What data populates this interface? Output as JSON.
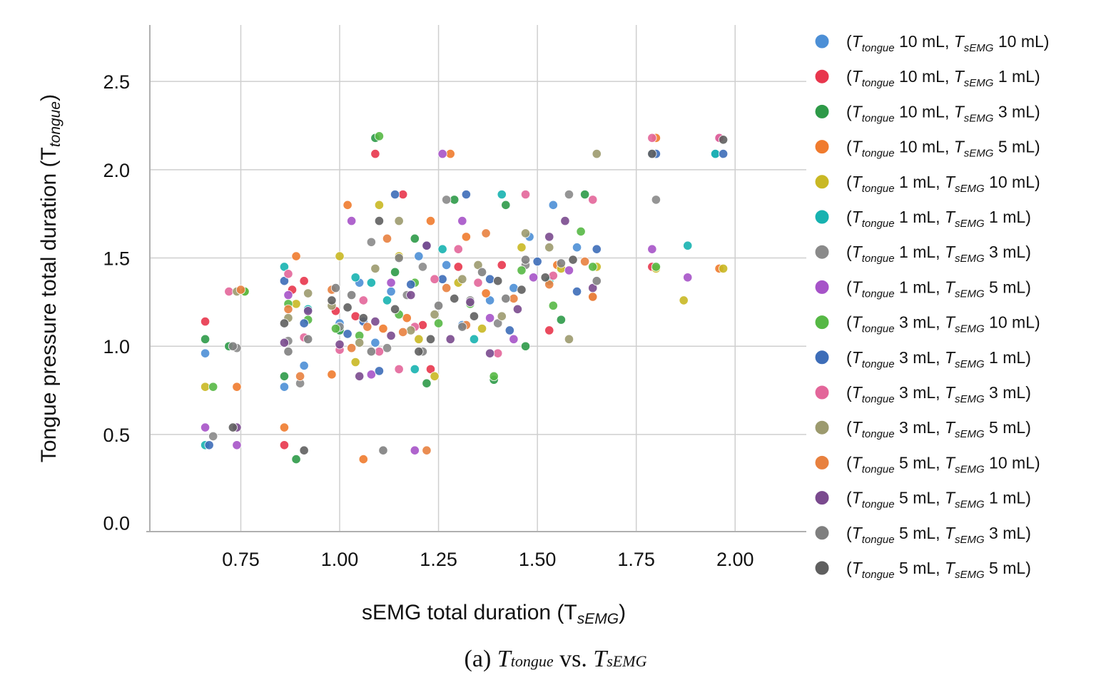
{
  "chart_data": {
    "type": "scatter",
    "xlabel_main": "sEMG total duration (T",
    "xlabel_sub": "sEMG",
    "xlabel_close": ")",
    "ylabel_main": "Tongue pressure total duration (T",
    "ylabel_sub": "tongue",
    "ylabel_close": ")",
    "xlim": [
      0.52,
      2.18
    ],
    "ylim": [
      -0.05,
      2.82
    ],
    "x_ticks": [
      0.75,
      1.0,
      1.25,
      1.5,
      1.75,
      2.0
    ],
    "x_tick_labels": [
      "0.75",
      "1.00",
      "1.25",
      "1.50",
      "1.75",
      "2.00"
    ],
    "y_ticks": [
      0.0,
      0.5,
      1.0,
      1.5,
      2.0,
      2.5
    ],
    "y_tick_labels": [
      "0.0",
      "0.5",
      "1.0",
      "1.5",
      "2.0",
      "2.5"
    ],
    "grid": true,
    "legend_position": "right",
    "series": [
      {
        "name": "(T_tongue 10 mL, T_sEMG 10 mL)",
        "t": "10",
        "s": "10",
        "color": "#4c8fd6",
        "x": [
          0.66,
          0.86,
          0.91,
          1.0,
          1.05,
          1.09,
          1.13,
          1.2,
          1.27,
          1.31,
          1.38,
          1.44,
          1.48,
          1.54,
          1.6,
          1.79,
          1.95
        ],
        "y": [
          0.96,
          0.77,
          0.89,
          1.13,
          1.36,
          1.02,
          1.31,
          1.51,
          1.46,
          1.12,
          1.26,
          1.33,
          1.62,
          1.8,
          1.56,
          2.09,
          2.09
        ]
      },
      {
        "name": "(T_tongue 10 mL, T_sEMG 1 mL)",
        "t": "10",
        "s": "1",
        "color": "#e8364d",
        "x": [
          0.66,
          0.86,
          0.88,
          0.91,
          0.99,
          1.04,
          1.09,
          1.16,
          1.21,
          1.23,
          1.3,
          1.41,
          1.53,
          1.79
        ],
        "y": [
          1.14,
          0.44,
          1.32,
          1.37,
          1.2,
          1.17,
          2.09,
          1.86,
          1.12,
          0.87,
          1.45,
          1.46,
          1.09,
          1.45
        ]
      },
      {
        "name": "(T_tongue 10 mL, T_sEMG 3 mL)",
        "t": "10",
        "s": "3",
        "color": "#2e9a48",
        "x": [
          0.66,
          0.72,
          0.86,
          0.89,
          1.0,
          1.09,
          1.14,
          1.19,
          1.22,
          1.29,
          1.39,
          1.42,
          1.47,
          1.56,
          1.62
        ],
        "y": [
          1.04,
          1.0,
          0.83,
          0.36,
          1.09,
          2.18,
          1.42,
          1.61,
          0.79,
          1.83,
          0.81,
          1.8,
          1.0,
          1.15,
          1.86
        ]
      },
      {
        "name": "(T_tongue 10 mL, T_sEMG 5 mL)",
        "t": "10",
        "s": "5",
        "color": "#f07b2e",
        "x": [
          0.74,
          0.86,
          0.89,
          0.98,
          1.02,
          1.06,
          1.11,
          1.17,
          1.23,
          1.28,
          1.32,
          1.37,
          1.55,
          1.64,
          1.8,
          1.96
        ],
        "y": [
          0.77,
          0.54,
          1.51,
          0.84,
          1.8,
          0.36,
          1.1,
          1.16,
          1.71,
          2.09,
          1.62,
          1.3,
          1.46,
          1.28,
          2.18,
          1.44
        ]
      },
      {
        "name": "(T_tongue 1 mL, T_sEMG 10 mL)",
        "t": "1",
        "s": "10",
        "color": "#c9b824",
        "x": [
          0.66,
          0.76,
          0.89,
          1.0,
          1.04,
          1.1,
          1.15,
          1.2,
          1.24,
          1.3,
          1.36,
          1.46,
          1.56,
          1.65,
          1.8,
          1.87,
          1.97
        ],
        "y": [
          0.77,
          1.31,
          1.24,
          1.51,
          0.91,
          1.8,
          1.51,
          1.04,
          0.83,
          1.36,
          1.1,
          1.56,
          1.44,
          1.45,
          1.44,
          1.26,
          1.44
        ]
      },
      {
        "name": "(T_tongue 1 mL, T_sEMG 1 mL)",
        "t": "1",
        "s": "1",
        "color": "#17b2b0",
        "x": [
          0.66,
          0.86,
          0.92,
          1.04,
          1.08,
          1.12,
          1.19,
          1.26,
          1.34,
          1.41,
          1.53,
          1.88,
          1.95
        ],
        "y": [
          0.44,
          1.45,
          1.21,
          1.39,
          1.36,
          1.26,
          0.87,
          1.55,
          1.04,
          1.86,
          1.37,
          1.57,
          2.09
        ]
      },
      {
        "name": "(T_tongue 1 mL, T_sEMG 3 mL)",
        "t": "1",
        "s": "3",
        "color": "#8a8a8a",
        "x": [
          0.68,
          0.74,
          0.87,
          0.9,
          1.0,
          1.08,
          1.12,
          1.17,
          1.21,
          1.27,
          1.33,
          1.4,
          1.47,
          1.58,
          1.8
        ],
        "y": [
          0.49,
          0.99,
          1.03,
          0.79,
          1.11,
          1.59,
          0.99,
          1.29,
          1.45,
          1.83,
          1.26,
          1.13,
          1.46,
          1.86,
          1.83
        ]
      },
      {
        "name": "(T_tongue 1 mL, T_sEMG 5 mL)",
        "t": "1",
        "s": "5",
        "color": "#a653c8",
        "x": [
          0.66,
          0.74,
          0.87,
          1.03,
          1.08,
          1.13,
          1.19,
          1.26,
          1.31,
          1.38,
          1.44,
          1.49,
          1.58,
          1.79,
          1.88,
          1.96
        ],
        "y": [
          0.54,
          0.44,
          1.29,
          1.71,
          0.84,
          1.36,
          0.41,
          2.09,
          1.71,
          1.16,
          1.04,
          1.39,
          1.43,
          1.55,
          1.39,
          2.18
        ]
      },
      {
        "name": "(T_tongue 3 mL, T_sEMG 10 mL)",
        "t": "3",
        "s": "10",
        "color": "#56b845",
        "x": [
          0.68,
          0.76,
          0.87,
          0.92,
          0.99,
          1.05,
          1.1,
          1.15,
          1.19,
          1.25,
          1.33,
          1.39,
          1.46,
          1.54,
          1.61,
          1.64,
          1.8
        ],
        "y": [
          0.77,
          1.31,
          1.24,
          1.15,
          1.1,
          1.06,
          2.19,
          1.18,
          1.36,
          1.13,
          1.24,
          0.83,
          1.43,
          1.23,
          1.65,
          1.45,
          1.45
        ]
      },
      {
        "name": "(T_tongue 3 mL, T_sEMG 1 mL)",
        "t": "3",
        "s": "1",
        "color": "#3d6db8",
        "x": [
          0.67,
          0.86,
          0.91,
          1.02,
          1.06,
          1.1,
          1.14,
          1.18,
          1.22,
          1.26,
          1.32,
          1.38,
          1.43,
          1.5,
          1.6,
          1.65,
          1.8,
          1.97
        ],
        "y": [
          0.44,
          1.37,
          1.13,
          1.07,
          1.14,
          0.86,
          1.86,
          1.35,
          1.57,
          1.38,
          1.86,
          1.38,
          1.09,
          1.48,
          1.31,
          1.55,
          2.09,
          2.09
        ]
      },
      {
        "name": "(T_tongue 3 mL, T_sEMG 3 mL)",
        "t": "3",
        "s": "3",
        "color": "#e3669a",
        "x": [
          0.72,
          0.87,
          0.91,
          1.0,
          1.06,
          1.1,
          1.15,
          1.19,
          1.24,
          1.3,
          1.35,
          1.4,
          1.47,
          1.54,
          1.64,
          1.79,
          1.96
        ],
        "y": [
          1.31,
          1.41,
          1.05,
          0.98,
          1.26,
          0.97,
          0.87,
          1.11,
          1.38,
          1.55,
          1.36,
          0.96,
          1.86,
          1.4,
          1.83,
          2.18,
          2.18
        ]
      },
      {
        "name": "(T_tongue 3 mL, T_sEMG 5 mL)",
        "t": "3",
        "s": "5",
        "color": "#9c9a6e",
        "x": [
          0.74,
          0.87,
          0.92,
          0.98,
          1.05,
          1.09,
          1.15,
          1.18,
          1.24,
          1.31,
          1.35,
          1.41,
          1.47,
          1.53,
          1.58,
          1.65
        ],
        "y": [
          1.31,
          1.16,
          1.3,
          1.23,
          1.02,
          1.44,
          1.71,
          1.09,
          1.18,
          1.38,
          1.46,
          1.17,
          1.64,
          1.56,
          1.04,
          2.09
        ]
      },
      {
        "name": "(T_tongue 5 mL, T_sEMG 10 mL)",
        "t": "5",
        "s": "10",
        "color": "#e8813f",
        "x": [
          0.75,
          0.87,
          0.9,
          0.98,
          1.03,
          1.07,
          1.12,
          1.16,
          1.22,
          1.27,
          1.32,
          1.37,
          1.44,
          1.53,
          1.62,
          1.64
        ],
        "y": [
          1.32,
          1.21,
          0.83,
          1.32,
          0.99,
          1.11,
          1.61,
          1.08,
          0.41,
          1.33,
          1.12,
          1.64,
          1.27,
          1.35,
          1.48,
          1.28
        ]
      },
      {
        "name": "(T_tongue 5 mL, T_sEMG 1 mL)",
        "t": "5",
        "s": "1",
        "color": "#7a4a8e",
        "x": [
          0.74,
          0.86,
          0.92,
          1.0,
          1.05,
          1.09,
          1.13,
          1.18,
          1.22,
          1.28,
          1.33,
          1.38,
          1.45,
          1.53,
          1.57,
          1.64
        ],
        "y": [
          0.54,
          1.02,
          1.2,
          1.01,
          0.83,
          1.14,
          1.06,
          1.29,
          1.57,
          1.04,
          1.25,
          0.96,
          1.21,
          1.62,
          1.71,
          1.33
        ]
      },
      {
        "name": "(T_tongue 5 mL, T_sEMG 3 mL)",
        "t": "5",
        "s": "3",
        "color": "#7f7f7f",
        "x": [
          0.73,
          0.87,
          0.92,
          0.99,
          1.03,
          1.08,
          1.11,
          1.15,
          1.21,
          1.25,
          1.31,
          1.36,
          1.42,
          1.47,
          1.56,
          1.65
        ],
        "y": [
          1.0,
          0.97,
          1.04,
          1.33,
          1.29,
          0.97,
          0.41,
          1.5,
          0.97,
          1.23,
          1.11,
          1.42,
          1.27,
          1.49,
          1.47,
          1.37
        ]
      },
      {
        "name": "(T_tongue 5 mL, T_sEMG 5 mL)",
        "t": "5",
        "s": "5",
        "color": "#5f5f5f",
        "x": [
          0.73,
          0.86,
          0.91,
          0.98,
          1.02,
          1.06,
          1.1,
          1.14,
          1.2,
          1.23,
          1.29,
          1.34,
          1.4,
          1.46,
          1.52,
          1.59,
          1.79,
          1.97
        ],
        "y": [
          0.54,
          1.13,
          0.41,
          1.26,
          1.22,
          1.16,
          1.71,
          1.21,
          0.97,
          1.04,
          1.27,
          1.17,
          1.37,
          1.32,
          1.39,
          1.49,
          2.09,
          2.17
        ]
      }
    ]
  },
  "caption": {
    "label": "(a)",
    "var1": "T",
    "var1_sub": "tongue",
    "vs": "vs.",
    "var2": "T",
    "var2_sub": "sEMG"
  }
}
